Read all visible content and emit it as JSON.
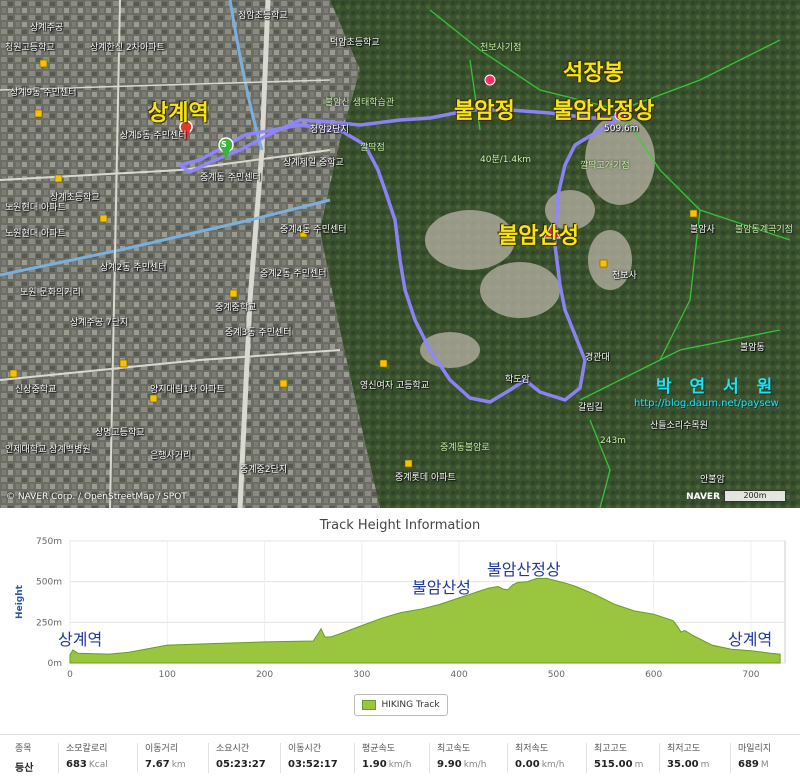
{
  "map": {
    "labels": {
      "sanggye_station": "상계역",
      "buram_pavilion": "불암정",
      "seokjang_peak": "석장봉",
      "buramsan_summit": "불암산정상",
      "buram_fortress": "불암산성"
    },
    "small_labels": [
      "상계주공",
      "상계9동 주민센터",
      "상계5동 주민센터",
      "상계제일 중학교",
      "중계4동 주민센터",
      "중계2동 주민센터",
      "상계2동 주민센터",
      "노원현대 아파트",
      "노원 문화의거리",
      "상계주공 7단지",
      "신상중학교",
      "양지대림1차 아파트",
      "상명고등학교",
      "인제대학교 상계백병원",
      "중계중학교",
      "은행사거리",
      "영신여자 고등학교",
      "중계롯데 아파트",
      "불암사",
      "천보사",
      "학도암",
      "덕암초등학교",
      "불암산 생태학습관",
      "중계동 주민센터",
      "중계3동 주민센터",
      "산들소리수목원",
      "안불암",
      "불암동",
      "청암2단지",
      "중계중2단지",
      "정암초등학교",
      "노원현대 아파트",
      "상계한신 2차아파트",
      "청원고등학교",
      "상계초등학교"
    ],
    "trail_labels": [
      "천보사기점",
      "깔딱고개기점",
      "불암동계곡기점",
      "40분/1.4km",
      "중계동불암로",
      "깔딱점",
      "경관대",
      "갈림길",
      "243m"
    ],
    "summit_height": "509.6m",
    "watermark": {
      "name": "박 연 서 원",
      "url": "http://blog.daum.net/paysew"
    },
    "copyright": "© NAVER Corp. / OpenStreetMap / SPOT",
    "logo": "NAVER",
    "scale": "200m",
    "start_marker": "S"
  },
  "chart_data": {
    "type": "area",
    "title": "Track Height Information",
    "ylabel": "Height",
    "xlabel": "",
    "xlim": [
      0,
      735
    ],
    "ylim": [
      0,
      750
    ],
    "xticks": [
      0,
      100,
      200,
      300,
      400,
      500,
      600,
      700
    ],
    "yticks": [
      {
        "value": 0,
        "label": "0m"
      },
      {
        "value": 250,
        "label": "250m"
      },
      {
        "value": 500,
        "label": "500m"
      },
      {
        "value": 750,
        "label": "750m"
      }
    ],
    "grid": true,
    "legend": "bottom-center",
    "series": [
      {
        "name": "HIKING Track",
        "color": "#9ac63f",
        "x": [
          0,
          3,
          8,
          40,
          60,
          100,
          150,
          200,
          250,
          255,
          258,
          262,
          268,
          280,
          300,
          320,
          340,
          360,
          380,
          400,
          410,
          420,
          430,
          440,
          445,
          450,
          455,
          460,
          470,
          480,
          490,
          500,
          510,
          520,
          540,
          560,
          580,
          600,
          620,
          625,
          628,
          632,
          640,
          660,
          680,
          700,
          720,
          730
        ],
        "y": [
          50,
          80,
          60,
          55,
          65,
          110,
          120,
          130,
          135,
          180,
          210,
          160,
          160,
          185,
          230,
          275,
          310,
          330,
          360,
          400,
          420,
          440,
          460,
          470,
          455,
          450,
          480,
          495,
          500,
          520,
          520,
          505,
          490,
          470,
          420,
          360,
          320,
          300,
          260,
          220,
          190,
          200,
          170,
          110,
          85,
          75,
          60,
          55
        ]
      }
    ],
    "annotations": [
      {
        "text": "상계역",
        "x": 35,
        "y": 0
      },
      {
        "text": "불암산성",
        "x": 440,
        "y": 0
      },
      {
        "text": "불암산정상",
        "x": 500,
        "y": 0
      },
      {
        "text": "상계역",
        "x": 730,
        "y": 0
      }
    ]
  },
  "stats": [
    {
      "header": "종목",
      "value": "등산",
      "unit": ""
    },
    {
      "header": "소모칼로리",
      "value": "683",
      "unit": "Kcal"
    },
    {
      "header": "이동거리",
      "value": "7.67",
      "unit": "km"
    },
    {
      "header": "소요시간",
      "value": "05:23:27",
      "unit": ""
    },
    {
      "header": "이동시간",
      "value": "03:52:17",
      "unit": ""
    },
    {
      "header": "평균속도",
      "value": "1.90",
      "unit": "km/h"
    },
    {
      "header": "최고속도",
      "value": "9.90",
      "unit": "km/h"
    },
    {
      "header": "최저속도",
      "value": "0.00",
      "unit": "km/h"
    },
    {
      "header": "최고고도",
      "value": "515.00",
      "unit": "m"
    },
    {
      "header": "최저고도",
      "value": "35.00",
      "unit": "m"
    },
    {
      "header": "마일리지",
      "value": "689",
      "unit": "M"
    }
  ]
}
